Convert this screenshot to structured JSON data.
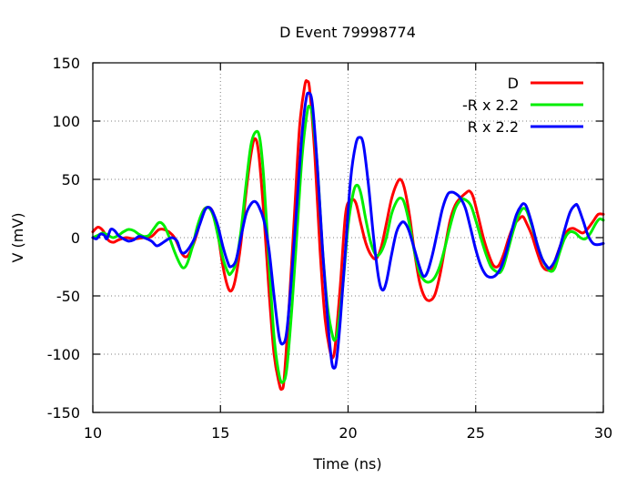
{
  "chart_data": {
    "type": "line",
    "title": "D Event 79998774",
    "xlabel": "Time (ns)",
    "ylabel": "V (mV)",
    "xlim": [
      10,
      30
    ],
    "ylim": [
      -150,
      150
    ],
    "xticks": [
      10,
      15,
      20,
      25,
      30
    ],
    "yticks": [
      -150,
      -100,
      -50,
      0,
      50,
      100,
      150
    ],
    "grid": true,
    "legend_position": "top-right",
    "series": [
      {
        "name": "D",
        "color": "#ff0000",
        "points": [
          [
            10.0,
            5
          ],
          [
            10.2,
            9
          ],
          [
            10.4,
            6
          ],
          [
            10.6,
            -2
          ],
          [
            10.8,
            -4
          ],
          [
            11.0,
            -2
          ],
          [
            11.3,
            0
          ],
          [
            11.6,
            -1
          ],
          [
            12.0,
            0
          ],
          [
            12.3,
            1
          ],
          [
            12.6,
            7
          ],
          [
            12.9,
            6
          ],
          [
            13.2,
            0
          ],
          [
            13.5,
            -14
          ],
          [
            13.7,
            -16
          ],
          [
            13.9,
            -8
          ],
          [
            14.1,
            5
          ],
          [
            14.3,
            22
          ],
          [
            14.5,
            26
          ],
          [
            14.7,
            22
          ],
          [
            14.9,
            3
          ],
          [
            15.1,
            -25
          ],
          [
            15.3,
            -43
          ],
          [
            15.45,
            -45
          ],
          [
            15.6,
            -34
          ],
          [
            15.8,
            -5
          ],
          [
            16.0,
            38
          ],
          [
            16.2,
            72
          ],
          [
            16.35,
            85
          ],
          [
            16.5,
            72
          ],
          [
            16.7,
            20
          ],
          [
            16.9,
            -45
          ],
          [
            17.1,
            -100
          ],
          [
            17.3,
            -125
          ],
          [
            17.4,
            -130
          ],
          [
            17.5,
            -120
          ],
          [
            17.7,
            -55
          ],
          [
            17.9,
            20
          ],
          [
            18.1,
            95
          ],
          [
            18.3,
            130
          ],
          [
            18.4,
            134
          ],
          [
            18.5,
            126
          ],
          [
            18.7,
            70
          ],
          [
            18.9,
            -10
          ],
          [
            19.1,
            -70
          ],
          [
            19.3,
            -98
          ],
          [
            19.4,
            -103
          ],
          [
            19.5,
            -92
          ],
          [
            19.7,
            -40
          ],
          [
            19.9,
            20
          ],
          [
            20.1,
            32
          ],
          [
            20.3,
            30
          ],
          [
            20.5,
            12
          ],
          [
            20.7,
            -5
          ],
          [
            20.9,
            -15
          ],
          [
            21.1,
            -18
          ],
          [
            21.3,
            -8
          ],
          [
            21.5,
            12
          ],
          [
            21.7,
            33
          ],
          [
            21.9,
            46
          ],
          [
            22.05,
            50
          ],
          [
            22.2,
            43
          ],
          [
            22.4,
            20
          ],
          [
            22.6,
            -12
          ],
          [
            22.8,
            -38
          ],
          [
            23.0,
            -51
          ],
          [
            23.2,
            -54
          ],
          [
            23.4,
            -49
          ],
          [
            23.6,
            -32
          ],
          [
            23.8,
            -8
          ],
          [
            24.0,
            15
          ],
          [
            24.2,
            28
          ],
          [
            24.4,
            34
          ],
          [
            24.6,
            38
          ],
          [
            24.75,
            40
          ],
          [
            24.9,
            35
          ],
          [
            25.1,
            18
          ],
          [
            25.3,
            0
          ],
          [
            25.5,
            -14
          ],
          [
            25.7,
            -24
          ],
          [
            25.9,
            -24
          ],
          [
            26.1,
            -14
          ],
          [
            26.3,
            0
          ],
          [
            26.5,
            11
          ],
          [
            26.7,
            16
          ],
          [
            26.85,
            18
          ],
          [
            27.0,
            12
          ],
          [
            27.2,
            2
          ],
          [
            27.4,
            -12
          ],
          [
            27.6,
            -24
          ],
          [
            27.8,
            -28
          ],
          [
            28.0,
            -26
          ],
          [
            28.2,
            -14
          ],
          [
            28.4,
            -2
          ],
          [
            28.6,
            6
          ],
          [
            28.8,
            8
          ],
          [
            29.0,
            6
          ],
          [
            29.2,
            4
          ],
          [
            29.4,
            8
          ],
          [
            29.6,
            14
          ],
          [
            29.8,
            20
          ],
          [
            30.0,
            20
          ]
        ]
      },
      {
        "name": "-R x 2.2",
        "color": "#00ee00",
        "points": [
          [
            10.0,
            0
          ],
          [
            10.2,
            2
          ],
          [
            10.4,
            4
          ],
          [
            10.6,
            2
          ],
          [
            10.8,
            0
          ],
          [
            11.0,
            2
          ],
          [
            11.2,
            5
          ],
          [
            11.4,
            7
          ],
          [
            11.6,
            6
          ],
          [
            11.8,
            3
          ],
          [
            12.0,
            1
          ],
          [
            12.2,
            2
          ],
          [
            12.4,
            8
          ],
          [
            12.6,
            13
          ],
          [
            12.8,
            10
          ],
          [
            13.0,
            0
          ],
          [
            13.2,
            -12
          ],
          [
            13.4,
            -22
          ],
          [
            13.55,
            -26
          ],
          [
            13.7,
            -22
          ],
          [
            13.9,
            -8
          ],
          [
            14.1,
            10
          ],
          [
            14.3,
            22
          ],
          [
            14.5,
            26
          ],
          [
            14.7,
            20
          ],
          [
            14.9,
            2
          ],
          [
            15.1,
            -18
          ],
          [
            15.3,
            -30
          ],
          [
            15.4,
            -31
          ],
          [
            15.6,
            -22
          ],
          [
            15.8,
            5
          ],
          [
            16.0,
            45
          ],
          [
            16.2,
            80
          ],
          [
            16.4,
            91
          ],
          [
            16.55,
            84
          ],
          [
            16.7,
            50
          ],
          [
            16.9,
            -20
          ],
          [
            17.1,
            -85
          ],
          [
            17.3,
            -118
          ],
          [
            17.45,
            -124
          ],
          [
            17.6,
            -112
          ],
          [
            17.8,
            -60
          ],
          [
            18.0,
            5
          ],
          [
            18.2,
            70
          ],
          [
            18.4,
            108
          ],
          [
            18.5,
            112
          ],
          [
            18.6,
            105
          ],
          [
            18.8,
            60
          ],
          [
            19.0,
            -10
          ],
          [
            19.2,
            -60
          ],
          [
            19.4,
            -85
          ],
          [
            19.5,
            -87
          ],
          [
            19.6,
            -78
          ],
          [
            19.8,
            -40
          ],
          [
            20.0,
            10
          ],
          [
            20.2,
            38
          ],
          [
            20.35,
            45
          ],
          [
            20.5,
            38
          ],
          [
            20.7,
            15
          ],
          [
            20.9,
            -5
          ],
          [
            21.1,
            -15
          ],
          [
            21.3,
            -12
          ],
          [
            21.5,
            0
          ],
          [
            21.7,
            20
          ],
          [
            21.9,
            31
          ],
          [
            22.05,
            34
          ],
          [
            22.2,
            30
          ],
          [
            22.4,
            12
          ],
          [
            22.6,
            -12
          ],
          [
            22.8,
            -30
          ],
          [
            23.0,
            -37
          ],
          [
            23.2,
            -38
          ],
          [
            23.4,
            -34
          ],
          [
            23.6,
            -24
          ],
          [
            23.8,
            -8
          ],
          [
            24.0,
            10
          ],
          [
            24.2,
            25
          ],
          [
            24.4,
            32
          ],
          [
            24.55,
            33
          ],
          [
            24.8,
            28
          ],
          [
            25.0,
            15
          ],
          [
            25.2,
            0
          ],
          [
            25.4,
            -14
          ],
          [
            25.6,
            -25
          ],
          [
            25.8,
            -29
          ],
          [
            25.95,
            -30
          ],
          [
            26.1,
            -24
          ],
          [
            26.3,
            -8
          ],
          [
            26.5,
            8
          ],
          [
            26.7,
            20
          ],
          [
            26.85,
            25
          ],
          [
            27.0,
            23
          ],
          [
            27.2,
            10
          ],
          [
            27.4,
            -5
          ],
          [
            27.6,
            -18
          ],
          [
            27.8,
            -26
          ],
          [
            27.95,
            -29
          ],
          [
            28.1,
            -26
          ],
          [
            28.3,
            -12
          ],
          [
            28.5,
            0
          ],
          [
            28.7,
            5
          ],
          [
            28.9,
            4
          ],
          [
            29.1,
            0
          ],
          [
            29.3,
            -1
          ],
          [
            29.5,
            4
          ],
          [
            29.7,
            12
          ],
          [
            29.85,
            16
          ],
          [
            30.0,
            15
          ]
        ]
      },
      {
        "name": "R x 2.2",
        "color": "#0000ff",
        "points": [
          [
            10.0,
            0
          ],
          [
            10.15,
            -1
          ],
          [
            10.3,
            3
          ],
          [
            10.45,
            2
          ],
          [
            10.55,
            -1
          ],
          [
            10.7,
            7
          ],
          [
            10.85,
            6
          ],
          [
            11.0,
            2
          ],
          [
            11.2,
            -1
          ],
          [
            11.4,
            -3
          ],
          [
            11.6,
            -2
          ],
          [
            11.8,
            1
          ],
          [
            12.0,
            0
          ],
          [
            12.3,
            -3
          ],
          [
            12.5,
            -7
          ],
          [
            12.7,
            -5
          ],
          [
            12.9,
            -2
          ],
          [
            13.1,
            0
          ],
          [
            13.3,
            -3
          ],
          [
            13.45,
            -12
          ],
          [
            13.6,
            -13
          ],
          [
            13.8,
            -8
          ],
          [
            14.0,
            0
          ],
          [
            14.2,
            12
          ],
          [
            14.4,
            24
          ],
          [
            14.55,
            26
          ],
          [
            14.7,
            22
          ],
          [
            14.9,
            10
          ],
          [
            15.1,
            -8
          ],
          [
            15.3,
            -22
          ],
          [
            15.4,
            -25
          ],
          [
            15.6,
            -20
          ],
          [
            15.8,
            0
          ],
          [
            16.0,
            20
          ],
          [
            16.2,
            29
          ],
          [
            16.35,
            31
          ],
          [
            16.5,
            27
          ],
          [
            16.7,
            15
          ],
          [
            16.9,
            -10
          ],
          [
            17.1,
            -50
          ],
          [
            17.3,
            -85
          ],
          [
            17.45,
            -91
          ],
          [
            17.6,
            -80
          ],
          [
            17.8,
            -30
          ],
          [
            18.0,
            30
          ],
          [
            18.2,
            90
          ],
          [
            18.35,
            118
          ],
          [
            18.45,
            124
          ],
          [
            18.6,
            115
          ],
          [
            18.8,
            60
          ],
          [
            19.0,
            -10
          ],
          [
            19.2,
            -70
          ],
          [
            19.35,
            -105
          ],
          [
            19.45,
            -112
          ],
          [
            19.55,
            -105
          ],
          [
            19.7,
            -70
          ],
          [
            19.9,
            -10
          ],
          [
            20.1,
            50
          ],
          [
            20.3,
            80
          ],
          [
            20.45,
            86
          ],
          [
            20.6,
            80
          ],
          [
            20.8,
            45
          ],
          [
            21.0,
            0
          ],
          [
            21.2,
            -35
          ],
          [
            21.35,
            -45
          ],
          [
            21.5,
            -38
          ],
          [
            21.7,
            -15
          ],
          [
            21.9,
            5
          ],
          [
            22.1,
            13
          ],
          [
            22.25,
            12
          ],
          [
            22.4,
            5
          ],
          [
            22.6,
            -10
          ],
          [
            22.8,
            -25
          ],
          [
            22.95,
            -33
          ],
          [
            23.1,
            -30
          ],
          [
            23.3,
            -15
          ],
          [
            23.5,
            5
          ],
          [
            23.7,
            25
          ],
          [
            23.9,
            37
          ],
          [
            24.05,
            39
          ],
          [
            24.2,
            38
          ],
          [
            24.4,
            34
          ],
          [
            24.6,
            25
          ],
          [
            24.8,
            8
          ],
          [
            25.0,
            -10
          ],
          [
            25.2,
            -24
          ],
          [
            25.4,
            -32
          ],
          [
            25.6,
            -34
          ],
          [
            25.8,
            -32
          ],
          [
            26.0,
            -25
          ],
          [
            26.2,
            -12
          ],
          [
            26.4,
            5
          ],
          [
            26.6,
            20
          ],
          [
            26.8,
            28
          ],
          [
            26.9,
            29
          ],
          [
            27.0,
            26
          ],
          [
            27.2,
            12
          ],
          [
            27.4,
            -5
          ],
          [
            27.6,
            -18
          ],
          [
            27.8,
            -25
          ],
          [
            27.9,
            -26
          ],
          [
            28.1,
            -20
          ],
          [
            28.3,
            -8
          ],
          [
            28.5,
            8
          ],
          [
            28.7,
            22
          ],
          [
            28.9,
            28
          ],
          [
            29.0,
            27
          ],
          [
            29.2,
            15
          ],
          [
            29.4,
            2
          ],
          [
            29.6,
            -5
          ],
          [
            29.8,
            -6
          ],
          [
            30.0,
            -5
          ]
        ]
      }
    ]
  }
}
